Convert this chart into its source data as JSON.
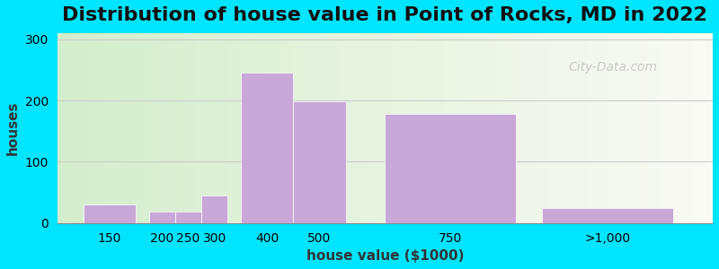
{
  "title": "Distribution of house value in Point of Rocks, MD in 2022",
  "xlabel": "house value ($1000)",
  "ylabel": "houses",
  "bar_labels": [
    "150",
    "200",
    "250",
    "300",
    "400",
    "500",
    "750",
    ">1,000"
  ],
  "bar_values": [
    30,
    18,
    18,
    45,
    245,
    198,
    178,
    25
  ],
  "bar_color": "#c8a8d8",
  "ylim": [
    0,
    310
  ],
  "yticks": [
    0,
    100,
    200,
    300
  ],
  "bg_outer": "#00e5ff",
  "grid_color": "#cccccc",
  "title_fontsize": 16,
  "axis_label_fontsize": 11,
  "tick_fontsize": 10,
  "watermark_text": "City-Data.com",
  "bar_positions": [
    1.0,
    2.0,
    2.5,
    3.0,
    4.0,
    5.0,
    7.5,
    10.5
  ],
  "bar_widths_raw": [
    1.0,
    0.5,
    0.5,
    0.5,
    1.0,
    1.0,
    2.5,
    2.5
  ],
  "xlim": [
    0.0,
    12.5
  ]
}
